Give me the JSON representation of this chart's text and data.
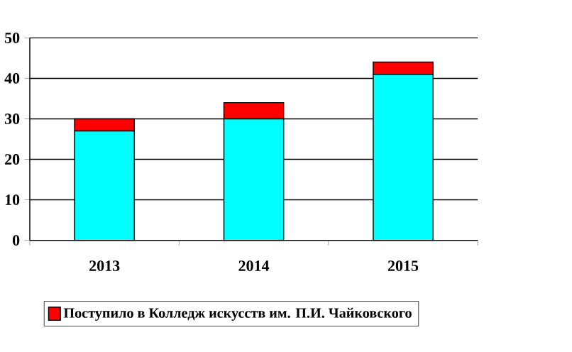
{
  "chart_data": {
    "type": "bar",
    "stacked": true,
    "categories": [
      "2013",
      "2014",
      "2015"
    ],
    "series": [
      {
        "color": "#00ffff",
        "values": [
          27,
          30,
          41
        ]
      },
      {
        "name": "Поступило в Колледж искусств им. П.И. Чайковского",
        "color": "#ff0000",
        "values": [
          3,
          4,
          3
        ]
      }
    ],
    "ylim": [
      0,
      50
    ],
    "yticks": [
      0,
      10,
      20,
      30,
      40,
      50
    ],
    "grid": "y",
    "legend": "bottom"
  }
}
